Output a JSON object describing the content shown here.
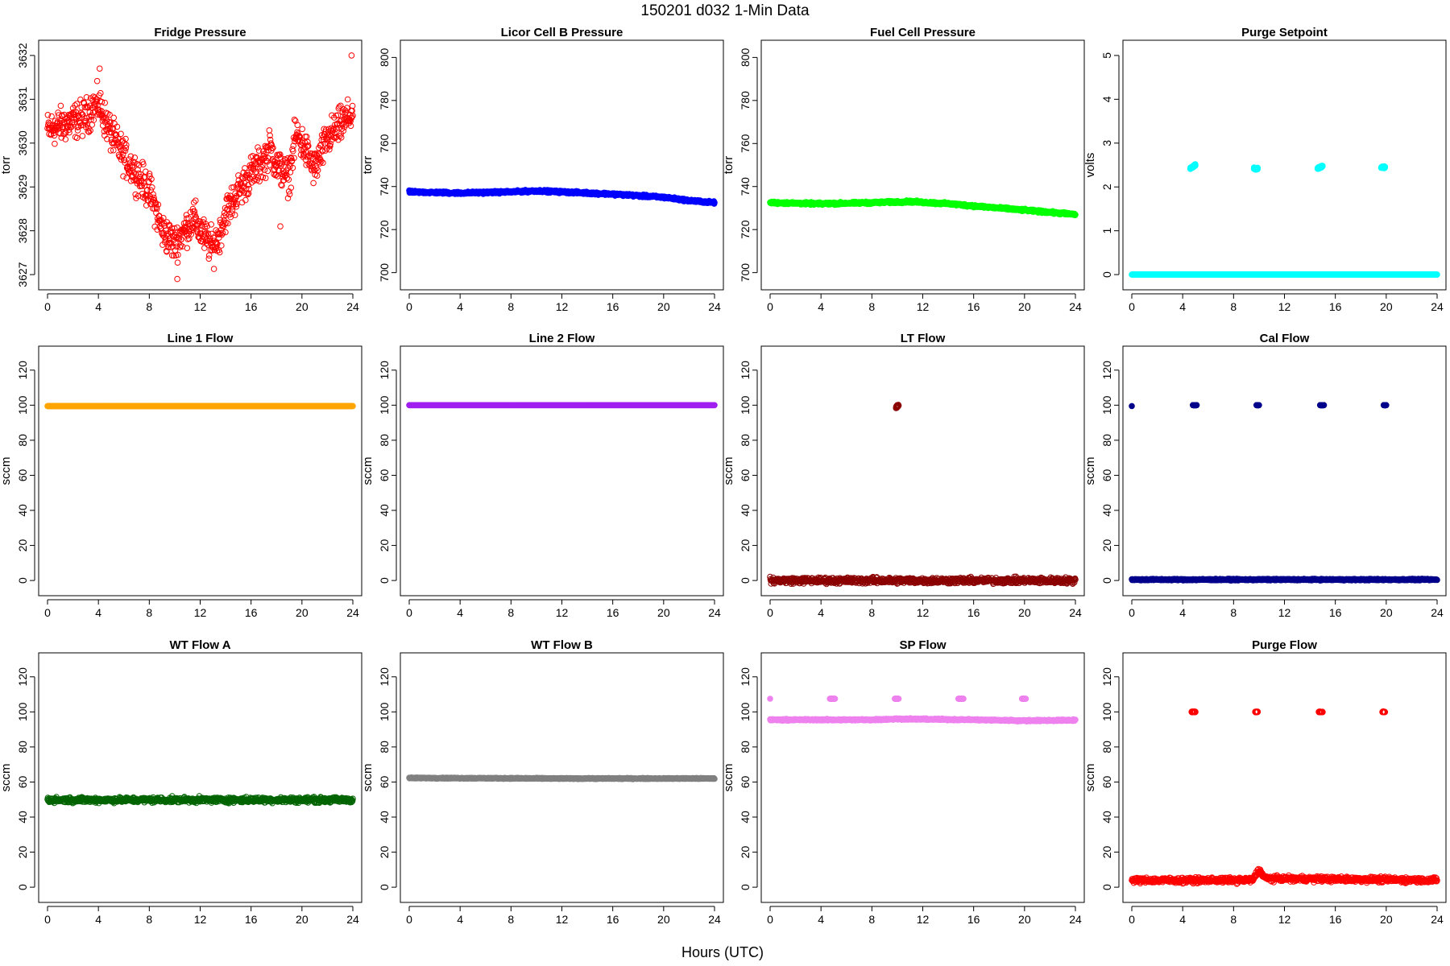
{
  "title": "150201    d032    1-Min Data",
  "xlabel": "Hours (UTC)",
  "chart_data": [
    {
      "type": "scatter",
      "title": "Fridge Pressure",
      "ylabel": "torr",
      "color": "#ff0000",
      "marker": "open",
      "xlim": [
        0,
        24
      ],
      "ylim": [
        3626.8,
        3632.2
      ],
      "xticks": [
        0,
        4,
        8,
        12,
        16,
        20,
        24
      ],
      "yticks": [
        3627,
        3628,
        3629,
        3630,
        3631,
        3632
      ],
      "series": [
        {
          "x": [
            0,
            1,
            2,
            3,
            3.5,
            4,
            5,
            6,
            7,
            8,
            8.5,
            9,
            10,
            11,
            11.5,
            12,
            13,
            13.5,
            14,
            15,
            16,
            17,
            17.5,
            18,
            19,
            19.5,
            20,
            21,
            22,
            23,
            23.7,
            24
          ],
          "y": [
            3630.3,
            3630.4,
            3630.5,
            3630.6,
            3630.8,
            3630.9,
            3630.2,
            3629.7,
            3629.3,
            3628.9,
            3628.5,
            3628.0,
            3627.7,
            3628.1,
            3628.3,
            3628.0,
            3627.6,
            3627.9,
            3628.4,
            3628.9,
            3629.3,
            3629.6,
            3629.9,
            3629.5,
            3629.2,
            3630.2,
            3630.0,
            3629.4,
            3630.1,
            3630.4,
            3630.6,
            3630.7
          ],
          "spread": 0.6,
          "outliers": [
            {
              "x": 23.9,
              "y": 3632.0
            },
            {
              "x": 4.1,
              "y": 3631.7
            },
            {
              "x": 10.2,
              "y": 3626.9
            },
            {
              "x": 18.3,
              "y": 3628.1
            }
          ]
        }
      ]
    },
    {
      "type": "scatter",
      "title": "Licor Cell B Pressure",
      "ylabel": "torr",
      "color": "#0000ff",
      "marker": "filled",
      "xlim": [
        0,
        24
      ],
      "ylim": [
        695,
        805
      ],
      "xticks": [
        0,
        4,
        8,
        12,
        16,
        20,
        24
      ],
      "yticks": [
        700,
        720,
        740,
        760,
        780,
        800
      ],
      "series": [
        {
          "x": [
            0,
            4,
            8,
            10,
            12,
            16,
            20,
            22,
            24
          ],
          "y": [
            737.5,
            737,
            737.5,
            738,
            737.5,
            736.5,
            735,
            733.5,
            732.5
          ],
          "spread": 0.8
        }
      ]
    },
    {
      "type": "scatter",
      "title": "Fuel Cell Pressure",
      "ylabel": "torr",
      "color": "#00ff00",
      "marker": "filled",
      "xlim": [
        0,
        24
      ],
      "ylim": [
        695,
        805
      ],
      "xticks": [
        0,
        4,
        8,
        12,
        16,
        20,
        24
      ],
      "yticks": [
        700,
        720,
        740,
        760,
        780,
        800
      ],
      "series": [
        {
          "x": [
            0,
            4,
            8,
            11,
            14,
            18,
            22,
            24
          ],
          "y": [
            732.5,
            732,
            732.5,
            733,
            732,
            730,
            728,
            727
          ],
          "spread": 0.8
        }
      ]
    },
    {
      "type": "scatter",
      "title": "Purge Setpoint",
      "ylabel": "volts",
      "color": "#00ffff",
      "marker": "filled",
      "xlim": [
        0,
        24
      ],
      "ylim": [
        -0.2,
        5.2
      ],
      "xticks": [
        0,
        4,
        8,
        12,
        16,
        20,
        24
      ],
      "yticks": [
        0,
        1,
        2,
        3,
        4,
        5
      ],
      "series": [
        {
          "x": [
            0,
            24
          ],
          "y": [
            0,
            0
          ],
          "spread": 0
        },
        {
          "x": [
            4.6,
            4.8,
            5.0
          ],
          "y": [
            2.42,
            2.46,
            2.5
          ],
          "spread": 0.03
        },
        {
          "x": [
            9.6,
            9.8,
            9.9
          ],
          "y": [
            2.42,
            2.42,
            2.42
          ],
          "spread": 0.03
        },
        {
          "x": [
            14.6,
            14.8,
            15.0
          ],
          "y": [
            2.42,
            2.45,
            2.48
          ],
          "spread": 0.03
        },
        {
          "x": [
            19.6,
            19.8,
            19.9
          ],
          "y": [
            2.45,
            2.45,
            2.45
          ],
          "spread": 0.03
        }
      ]
    },
    {
      "type": "scatter",
      "title": "Line 1 Flow",
      "ylabel": "sccm",
      "color": "#ffa500",
      "marker": "filled",
      "xlim": [
        0,
        24
      ],
      "ylim": [
        -5,
        130
      ],
      "xticks": [
        0,
        4,
        8,
        12,
        16,
        20,
        24
      ],
      "yticks": [
        0,
        20,
        40,
        60,
        80,
        100,
        120
      ],
      "series": [
        {
          "x": [
            0,
            24
          ],
          "y": [
            99.5,
            99.5
          ],
          "spread": 0
        }
      ]
    },
    {
      "type": "scatter",
      "title": "Line 2 Flow",
      "ylabel": "sccm",
      "color": "#a020f0",
      "marker": "filled",
      "xlim": [
        0,
        24
      ],
      "ylim": [
        -5,
        130
      ],
      "xticks": [
        0,
        4,
        8,
        12,
        16,
        20,
        24
      ],
      "yticks": [
        0,
        20,
        40,
        60,
        80,
        100,
        120
      ],
      "series": [
        {
          "x": [
            0,
            24
          ],
          "y": [
            100,
            100
          ],
          "spread": 0
        }
      ]
    },
    {
      "type": "scatter",
      "title": "LT Flow",
      "ylabel": "sccm",
      "color": "#8b0000",
      "marker": "open",
      "xlim": [
        0,
        24
      ],
      "ylim": [
        -5,
        130
      ],
      "xticks": [
        0,
        4,
        8,
        12,
        16,
        20,
        24
      ],
      "yticks": [
        0,
        20,
        40,
        60,
        80,
        100,
        120
      ],
      "series": [
        {
          "x": [
            0,
            24
          ],
          "y": [
            0,
            0
          ],
          "spread": 2.5
        },
        {
          "x": [
            9.9,
            10.1
          ],
          "y": [
            99,
            100
          ],
          "spread": 1.2
        }
      ]
    },
    {
      "type": "scatter",
      "title": "Cal Flow",
      "ylabel": "sccm",
      "color": "#00008b",
      "marker": "filled",
      "xlim": [
        0,
        24
      ],
      "ylim": [
        -5,
        130
      ],
      "xticks": [
        0,
        4,
        8,
        12,
        16,
        20,
        24
      ],
      "yticks": [
        0,
        20,
        40,
        60,
        80,
        100,
        120
      ],
      "series": [
        {
          "x": [
            0,
            24
          ],
          "y": [
            0.5,
            0.5
          ],
          "spread": 0.6
        },
        {
          "x": [
            0.0
          ],
          "y": [
            99.5
          ],
          "spread": 0
        },
        {
          "x": [
            4.8,
            5.1
          ],
          "y": [
            100,
            100
          ],
          "spread": 0
        },
        {
          "x": [
            9.8,
            10.0
          ],
          "y": [
            100,
            100
          ],
          "spread": 0
        },
        {
          "x": [
            14.8,
            15.1
          ],
          "y": [
            100,
            100
          ],
          "spread": 0
        },
        {
          "x": [
            19.8,
            20.0
          ],
          "y": [
            100,
            100
          ],
          "spread": 0
        }
      ]
    },
    {
      "type": "scatter",
      "title": "WT Flow A",
      "ylabel": "sccm",
      "color": "#006400",
      "marker": "open",
      "xlim": [
        0,
        24
      ],
      "ylim": [
        -5,
        130
      ],
      "xticks": [
        0,
        4,
        8,
        12,
        16,
        20,
        24
      ],
      "yticks": [
        0,
        20,
        40,
        60,
        80,
        100,
        120
      ],
      "series": [
        {
          "x": [
            0,
            24
          ],
          "y": [
            49.8,
            49.8
          ],
          "spread": 2.2
        }
      ]
    },
    {
      "type": "scatter",
      "title": "WT Flow B",
      "ylabel": "sccm",
      "color": "#808080",
      "marker": "filled",
      "xlim": [
        0,
        24
      ],
      "ylim": [
        -5,
        130
      ],
      "xticks": [
        0,
        4,
        8,
        12,
        16,
        20,
        24
      ],
      "yticks": [
        0,
        20,
        40,
        60,
        80,
        100,
        120
      ],
      "series": [
        {
          "x": [
            0,
            12,
            24
          ],
          "y": [
            62.3,
            62,
            62
          ],
          "spread": 0.4
        }
      ]
    },
    {
      "type": "scatter",
      "title": "SP Flow",
      "ylabel": "sccm",
      "color": "#ee82ee",
      "marker": "filled",
      "xlim": [
        0,
        24
      ],
      "ylim": [
        -5,
        130
      ],
      "xticks": [
        0,
        4,
        8,
        12,
        16,
        20,
        24
      ],
      "yticks": [
        0,
        20,
        40,
        60,
        80,
        100,
        120
      ],
      "series": [
        {
          "x": [
            0,
            8,
            10,
            16,
            20,
            24
          ],
          "y": [
            95.5,
            95.5,
            96,
            95.5,
            95,
            95.3
          ],
          "spread": 0.6
        },
        {
          "x": [
            0.0
          ],
          "y": [
            107.5
          ],
          "spread": 0
        },
        {
          "x": [
            4.7,
            5.1
          ],
          "y": [
            107.5,
            107.5
          ],
          "spread": 0
        },
        {
          "x": [
            9.8,
            10.1
          ],
          "y": [
            107.5,
            107.5
          ],
          "spread": 0
        },
        {
          "x": [
            14.8,
            15.2
          ],
          "y": [
            107.5,
            107.5
          ],
          "spread": 0
        },
        {
          "x": [
            19.8,
            20.1
          ],
          "y": [
            107.5,
            107.5
          ],
          "spread": 0
        }
      ]
    },
    {
      "type": "scatter",
      "title": "Purge Flow",
      "ylabel": "sccm",
      "color": "#ff0000",
      "marker": "open",
      "xlim": [
        0,
        24
      ],
      "ylim": [
        -5,
        130
      ],
      "xticks": [
        0,
        4,
        8,
        12,
        16,
        20,
        24
      ],
      "yticks": [
        0,
        20,
        40,
        60,
        80,
        100,
        120
      ],
      "series": [
        {
          "x": [
            0,
            9.5,
            10,
            10.5,
            24
          ],
          "y": [
            4,
            4,
            10,
            5,
            4
          ],
          "spread": 2.2
        },
        {
          "x": [
            4.7,
            5.0
          ],
          "y": [
            100,
            100
          ],
          "spread": 0.3
        },
        {
          "x": [
            9.7,
            9.9
          ],
          "y": [
            100,
            100
          ],
          "spread": 0.3
        },
        {
          "x": [
            14.7,
            15.0
          ],
          "y": [
            100,
            100
          ],
          "spread": 0.3
        },
        {
          "x": [
            19.7,
            19.9
          ],
          "y": [
            100,
            100
          ],
          "spread": 0.3
        }
      ]
    }
  ]
}
